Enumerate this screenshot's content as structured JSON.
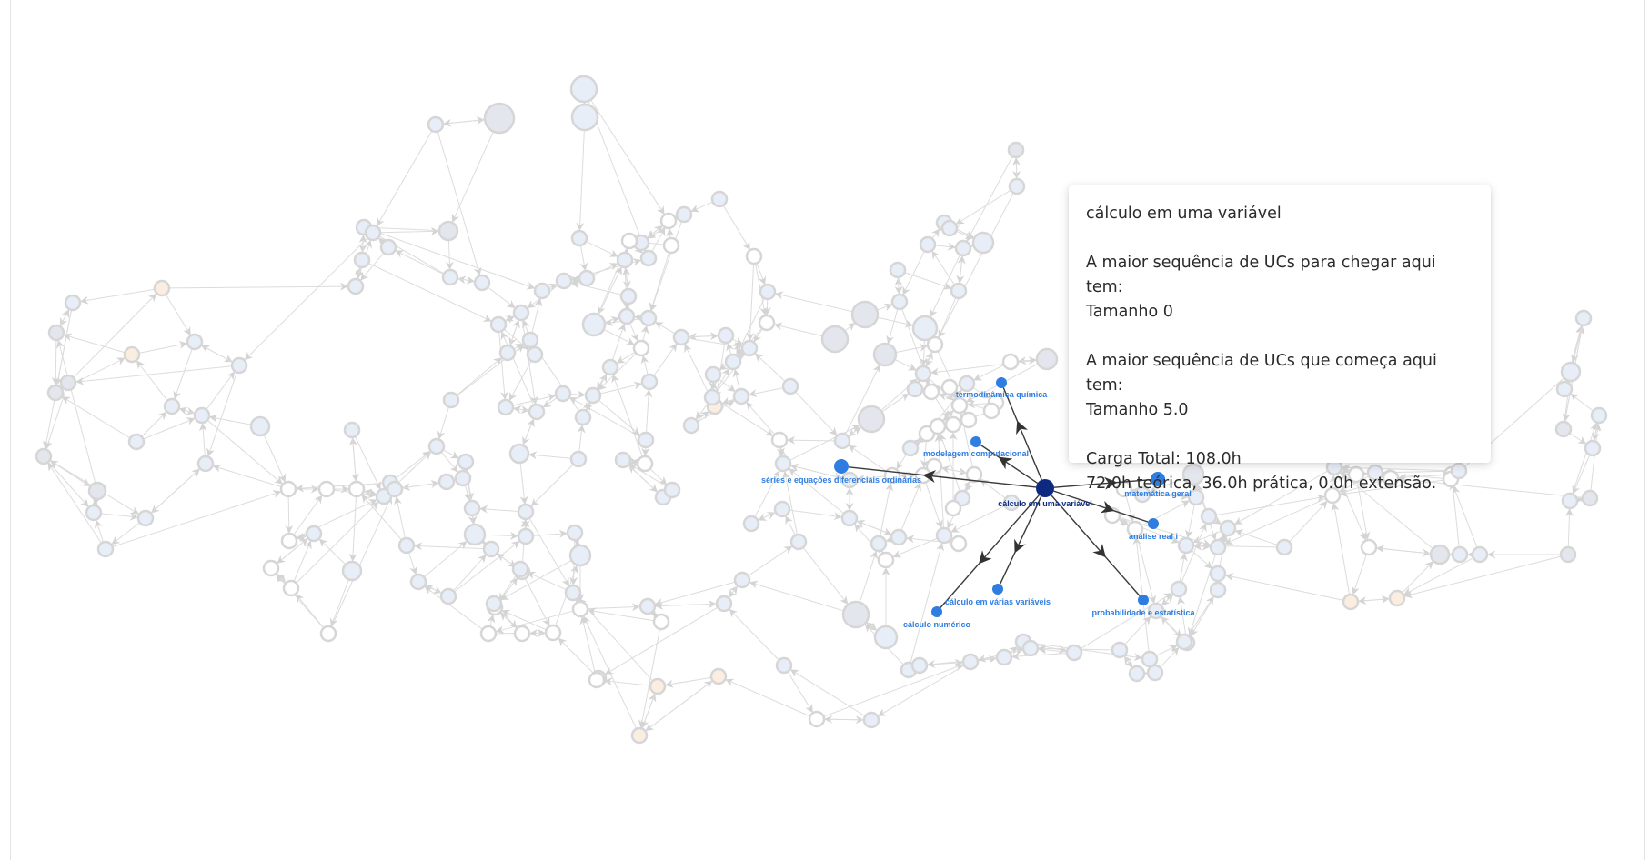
{
  "graph": {
    "highlighted_node": {
      "id": "calc1",
      "label": "cálculo em uma variável",
      "color": "#0d2a80"
    },
    "neighbor_color": "#2f7de1",
    "neighbors": [
      {
        "id": "termo",
        "label": "termodinâmica química",
        "direction": "outgoing"
      },
      {
        "id": "modcomp",
        "label": "modelagem computacional",
        "direction": "outgoing"
      },
      {
        "id": "series",
        "label": "séries e equações diferenciais ordinárias",
        "direction": "outgoing"
      },
      {
        "id": "matger",
        "label": "matemática geral",
        "direction": "outgoing"
      },
      {
        "id": "analise",
        "label": "análise real i",
        "direction": "outgoing"
      },
      {
        "id": "calcvar",
        "label": "cálculo em várias variáveis",
        "direction": "outgoing"
      },
      {
        "id": "calcnum",
        "label": "cálculo numérico",
        "direction": "outgoing"
      },
      {
        "id": "probest",
        "label": "probabilidade e estatística",
        "direction": "outgoing"
      }
    ],
    "faded_node_fill_colors": [
      "#e8eef8",
      "#fbeee0",
      "#e4e6ee",
      "#f8e1e1",
      "#ffffff"
    ],
    "faded_edge_color": "#dcdcdc"
  },
  "tooltip": {
    "title": "cálculo em uma variável",
    "longest_path_in_label": "A maior sequência de UCs para chegar aqui tem:",
    "longest_path_in_value": "Tamanho 0",
    "longest_path_out_label": "A maior sequência de UCs que começa aqui tem:",
    "longest_path_out_value": "Tamanho 5.0",
    "total_load": "Carga Total: 108.0h",
    "load_breakdown": "72.0h teórica, 36.0h prática, 0.0h extensão."
  }
}
